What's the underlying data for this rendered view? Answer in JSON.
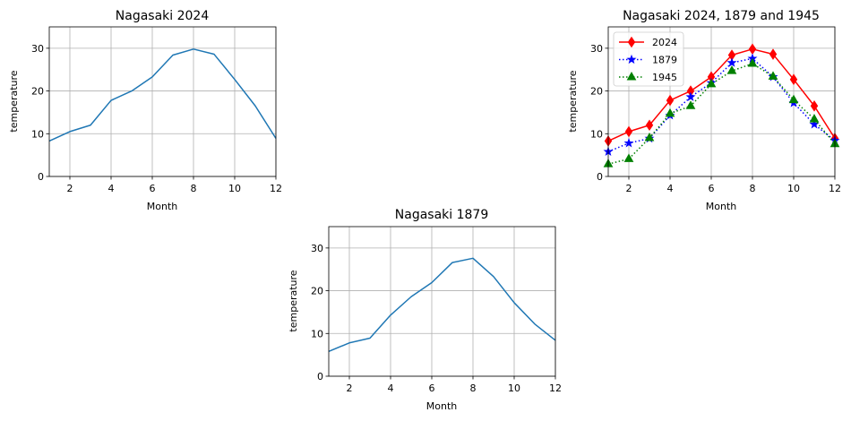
{
  "chart_data": [
    {
      "type": "line",
      "title": "Nagasaki 2024",
      "xlabel": "Month",
      "ylabel": "temperature",
      "xlim": [
        1,
        12
      ],
      "ylim": [
        0,
        35
      ],
      "xticks": [
        2,
        4,
        6,
        8,
        10,
        12
      ],
      "yticks": [
        0,
        10,
        20,
        30
      ],
      "grid": true,
      "legend": null,
      "x": [
        1,
        2,
        3,
        4,
        5,
        6,
        7,
        8,
        9,
        10,
        11,
        12
      ],
      "series": [
        {
          "values": [
            8.3,
            10.5,
            12.0,
            17.8,
            20.0,
            23.3,
            28.4,
            29.8,
            28.6,
            22.7,
            16.5,
            8.9
          ],
          "color": "#1f77b4",
          "style": "solid",
          "marker": "none"
        }
      ]
    },
    {
      "type": "line",
      "title": "Nagasaki 2024, 1879 and 1945",
      "xlabel": "Month",
      "ylabel": "temperature",
      "xlim": [
        1,
        12
      ],
      "ylim": [
        0,
        35
      ],
      "xticks": [
        2,
        4,
        6,
        8,
        10,
        12
      ],
      "yticks": [
        0,
        10,
        20,
        30
      ],
      "grid": true,
      "legend": "top-left",
      "x": [
        1,
        2,
        3,
        4,
        5,
        6,
        7,
        8,
        9,
        10,
        11,
        12
      ],
      "series": [
        {
          "name": "2024",
          "values": [
            8.3,
            10.5,
            12.0,
            17.8,
            20.0,
            23.3,
            28.4,
            29.8,
            28.6,
            22.7,
            16.5,
            8.9
          ],
          "color": "#ff0000",
          "style": "solid",
          "marker": "diamond"
        },
        {
          "name": "1879",
          "values": [
            5.8,
            7.8,
            8.9,
            14.3,
            18.6,
            21.9,
            26.6,
            27.6,
            23.3,
            17.2,
            12.2,
            8.4
          ],
          "color": "#0000ff",
          "style": "dotted",
          "marker": "star"
        },
        {
          "name": "1945",
          "values": [
            2.9,
            4.1,
            9.0,
            14.7,
            16.5,
            21.6,
            24.7,
            26.4,
            23.4,
            17.9,
            13.4,
            7.6
          ],
          "color": "#008000",
          "style": "dotted",
          "marker": "triangle"
        }
      ]
    },
    {
      "type": "line",
      "title": "Nagasaki 1879",
      "xlabel": "Month",
      "ylabel": "temperature",
      "xlim": [
        1,
        12
      ],
      "ylim": [
        0,
        35
      ],
      "xticks": [
        2,
        4,
        6,
        8,
        10,
        12
      ],
      "yticks": [
        0,
        10,
        20,
        30
      ],
      "grid": true,
      "legend": null,
      "x": [
        1,
        2,
        3,
        4,
        5,
        6,
        7,
        8,
        9,
        10,
        11,
        12
      ],
      "series": [
        {
          "values": [
            5.8,
            7.8,
            8.9,
            14.3,
            18.6,
            21.9,
            26.6,
            27.6,
            23.3,
            17.2,
            12.2,
            8.4
          ],
          "color": "#1f77b4",
          "style": "solid",
          "marker": "none"
        }
      ]
    }
  ]
}
